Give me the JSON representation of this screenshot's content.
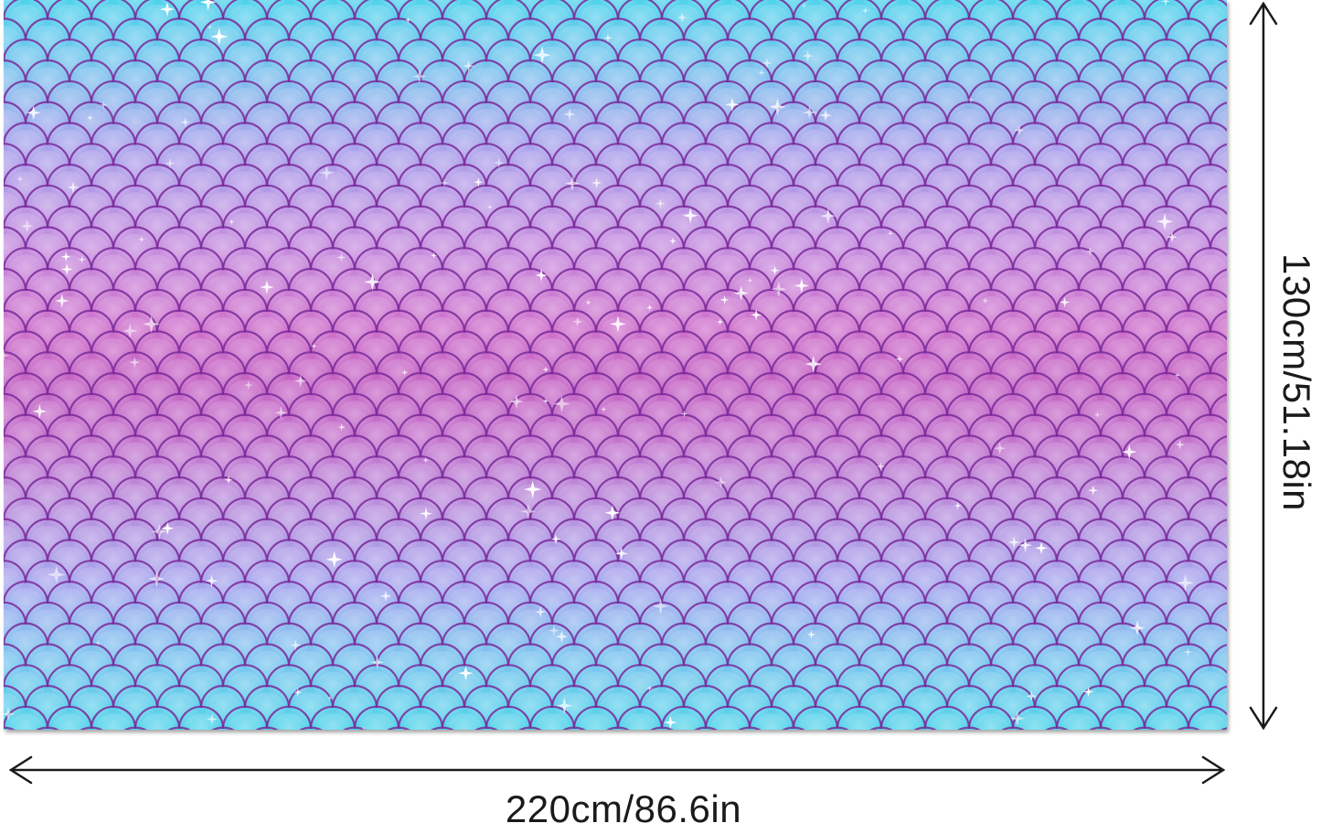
{
  "product": {
    "pattern_icon": "mermaid-scale-pattern",
    "colors": {
      "aqua": "#4fd2ec",
      "lavender": "#a9a2ec",
      "magenta": "#c564c4",
      "scale_outline": "#7a2a9a"
    }
  },
  "dimensions": {
    "width_label": "220cm/86.6in",
    "height_label": "130cm/51.18in"
  }
}
